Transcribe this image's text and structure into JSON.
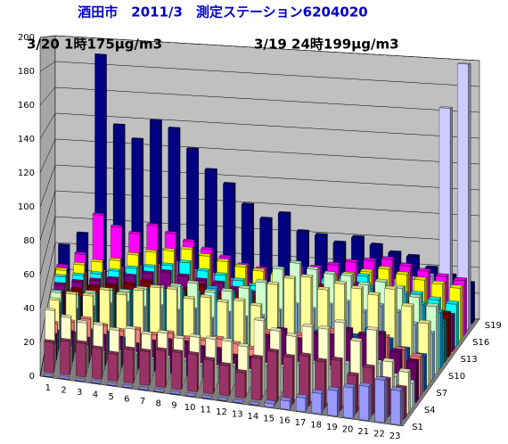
{
  "chart_data": {
    "type": "bar3d",
    "title": "酒田市　2011/3　測定ステーション6204020",
    "annotations": [
      "3/20 1時175μg/m3",
      "3/19 24時199μg/m3"
    ],
    "categories": [
      1,
      2,
      3,
      4,
      5,
      6,
      7,
      8,
      9,
      10,
      11,
      12,
      13,
      14,
      15,
      16,
      17,
      18,
      19,
      20,
      21,
      22,
      23
    ],
    "ylim": [
      0,
      200
    ],
    "yticks": [
      0,
      20,
      40,
      60,
      80,
      100,
      120,
      140,
      160,
      180,
      200
    ],
    "grid": true,
    "series": [
      {
        "name": "S1",
        "color": "#9999FF",
        "values": [
          0,
          0,
          0,
          0,
          0,
          0,
          0,
          0,
          0,
          0,
          0,
          0,
          0,
          0,
          2,
          5,
          8,
          12,
          15,
          18,
          20,
          25,
          20
        ]
      },
      {
        "name": null,
        "color": "#993366",
        "values": [
          18,
          20,
          20,
          18,
          16,
          20,
          20,
          22,
          22,
          22,
          20,
          18,
          15,
          25,
          30,
          28,
          30,
          28,
          30,
          22,
          28,
          22,
          18
        ]
      },
      {
        "name": null,
        "color": "#FFFFCC",
        "values": [
          35,
          32,
          30,
          30,
          28,
          30,
          28,
          30,
          28,
          30,
          30,
          30,
          28,
          45,
          40,
          38,
          45,
          45,
          50,
          40,
          48,
          30,
          25
        ]
      },
      {
        "name": "S4",
        "color": "#CCFFFF",
        "values": [
          10,
          10,
          12,
          10,
          12,
          12,
          10,
          12,
          12,
          10,
          10,
          12,
          10,
          15,
          15,
          18,
          20,
          18,
          22,
          20,
          25,
          18,
          15
        ]
      },
      {
        "name": null,
        "color": "#660066",
        "values": [
          15,
          18,
          15,
          18,
          18,
          15,
          18,
          20,
          20,
          18,
          18,
          15,
          15,
          30,
          35,
          30,
          35,
          35,
          40,
          38,
          40,
          30,
          25
        ]
      },
      {
        "name": null,
        "color": "#FF8080",
        "values": [
          20,
          22,
          25,
          22,
          20,
          22,
          20,
          22,
          20,
          20,
          22,
          20,
          18,
          30,
          28,
          30,
          30,
          35,
          30,
          32,
          35,
          28,
          25
        ]
      },
      {
        "name": "S7",
        "color": "#0066CC",
        "values": [
          12,
          12,
          15,
          15,
          12,
          15,
          15,
          12,
          15,
          15,
          12,
          15,
          12,
          20,
          25,
          25,
          30,
          28,
          30,
          35,
          30,
          25,
          22
        ]
      },
      {
        "name": null,
        "color": "#FFFF99",
        "values": [
          30,
          35,
          35,
          40,
          38,
          42,
          45,
          45,
          40,
          42,
          40,
          42,
          40,
          55,
          60,
          62,
          55,
          60,
          58,
          55,
          60,
          50,
          40
        ]
      },
      {
        "name": null,
        "color": "#99CCFF",
        "values": [
          25,
          22,
          25,
          28,
          30,
          28,
          30,
          28,
          30,
          25,
          30,
          28,
          30,
          35,
          40,
          38,
          42,
          45,
          40,
          45,
          42,
          35,
          30
        ]
      },
      {
        "name": "S10",
        "color": "#CCFFCC",
        "values": [
          30,
          30,
          32,
          35,
          35,
          38,
          40,
          42,
          45,
          40,
          42,
          45,
          50,
          60,
          65,
          62,
          60,
          60,
          55,
          58,
          55,
          50,
          45
        ]
      },
      {
        "name": null,
        "color": "#00CCFF",
        "values": [
          28,
          25,
          28,
          30,
          32,
          35,
          35,
          38,
          36,
          40,
          38,
          40,
          42,
          45,
          48,
          45,
          50,
          48,
          50,
          45,
          48,
          42,
          38
        ]
      },
      {
        "name": null,
        "color": "#008080",
        "values": [
          20,
          22,
          25,
          28,
          30,
          28,
          30,
          32,
          30,
          28,
          30,
          28,
          30,
          35,
          38,
          40,
          42,
          40,
          38,
          40,
          35,
          30,
          28
        ]
      },
      {
        "name": "S13",
        "color": "#800000",
        "values": [
          22,
          25,
          28,
          30,
          32,
          35,
          30,
          32,
          35,
          30,
          32,
          30,
          28,
          35,
          40,
          42,
          38,
          40,
          42,
          38,
          35,
          32,
          30
        ]
      },
      {
        "name": null,
        "color": "#800080",
        "values": [
          25,
          28,
          30,
          32,
          35,
          38,
          40,
          38,
          36,
          35,
          32,
          30,
          28,
          30,
          35,
          38,
          40,
          42,
          38,
          35,
          30,
          28,
          25
        ]
      },
      {
        "name": null,
        "color": "#00FFFF",
        "values": [
          28,
          30,
          32,
          35,
          38,
          40,
          42,
          45,
          40,
          38,
          35,
          32,
          30,
          35,
          38,
          40,
          42,
          45,
          40,
          38,
          35,
          32,
          30
        ]
      },
      {
        "name": "S16",
        "color": "#FFFF00",
        "values": [
          30,
          35,
          38,
          40,
          45,
          48,
          50,
          52,
          48,
          45,
          42,
          40,
          38,
          35,
          38,
          40,
          42,
          45,
          48,
          45,
          42,
          40,
          38
        ]
      },
      {
        "name": null,
        "color": "#FF00FF",
        "values": [
          30,
          40,
          70,
          62,
          58,
          65,
          60,
          55,
          50,
          45,
          40,
          38,
          35,
          40,
          42,
          45,
          48,
          50,
          52,
          48,
          45,
          42,
          40
        ]
      },
      {
        "name": null,
        "color": "#CCCCFF",
        "values": [
          20,
          22,
          25,
          28,
          30,
          32,
          35,
          30,
          28,
          25,
          22,
          20,
          18,
          20,
          22,
          25,
          28,
          30,
          32,
          35,
          38,
          165,
          199
        ]
      },
      {
        "name": "S19",
        "color": "#000080",
        "values": [
          40,
          50,
          188,
          135,
          125,
          140,
          135,
          120,
          105,
          95,
          80,
          70,
          75,
          62,
          60,
          55,
          60,
          55,
          50,
          48,
          40,
          35,
          30
        ]
      }
    ]
  }
}
